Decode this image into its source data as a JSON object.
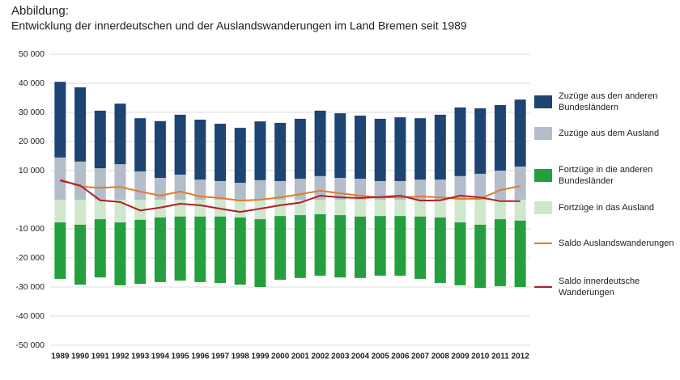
{
  "chart_data": {
    "type": "bar",
    "title": "Abbildung:",
    "subtitle": "Entwicklung der innerdeutschen und der Auslandswanderungen im Land Bremen seit 1989",
    "categories": [
      "1989",
      "1990",
      "1991",
      "1992",
      "1993",
      "1994",
      "1995",
      "1996",
      "1997",
      "1998",
      "1999",
      "2000",
      "2001",
      "2002",
      "2003",
      "2004",
      "2005",
      "2006",
      "2007",
      "2008",
      "2009",
      "2010",
      "2011",
      "2012"
    ],
    "ylim": [
      -50000,
      50000
    ],
    "yticks": [
      {
        "value": 50000,
        "label": "50 000"
      },
      {
        "value": 40000,
        "label": "40 000"
      },
      {
        "value": 30000,
        "label": "30 000"
      },
      {
        "value": 20000,
        "label": "20 000"
      },
      {
        "value": 10000,
        "label": "10 000"
      },
      {
        "value": -10000,
        "label": "-10 000"
      },
      {
        "value": -20000,
        "label": "-20 000"
      },
      {
        "value": -30000,
        "label": "-30 000"
      },
      {
        "value": -40000,
        "label": "-40 000"
      },
      {
        "value": -50000,
        "label": "-50 000"
      }
    ],
    "grid": true,
    "legend": "right",
    "series": [
      {
        "name": "Zuzüge aus den anderen Bundesländern",
        "type": "bar",
        "color": "#1d4472",
        "values": [
          26000,
          25500,
          19800,
          20800,
          18300,
          19500,
          20600,
          20600,
          19700,
          18900,
          20200,
          20000,
          20600,
          22500,
          22200,
          21700,
          21400,
          21900,
          21100,
          22300,
          23600,
          22500,
          22500,
          23000
        ]
      },
      {
        "name": "Zuzüge aus dem Ausland",
        "type": "bar",
        "color": "#b3bdca",
        "values": [
          14500,
          13100,
          10800,
          12200,
          9700,
          7500,
          8600,
          6900,
          6400,
          5800,
          6700,
          6400,
          7200,
          8100,
          7500,
          7200,
          6400,
          6400,
          6900,
          6900,
          8100,
          8900,
          10000,
          11400
        ]
      },
      {
        "name": "Fortzüge in die anderen Bundesländer",
        "type": "bar",
        "color": "#23a03d",
        "values": [
          -19400,
          -20600,
          -20000,
          -21600,
          -22000,
          -22200,
          -22000,
          -22500,
          -22800,
          -23100,
          -23300,
          -21900,
          -21600,
          -21100,
          -21400,
          -21100,
          -20500,
          -20500,
          -21400,
          -22500,
          -21600,
          -21700,
          -23000,
          -22800
        ]
      },
      {
        "name": "Fortzüge in das Ausland",
        "type": "bar",
        "color": "#cfe7cd",
        "values": [
          -7800,
          -8600,
          -6700,
          -7800,
          -6900,
          -6100,
          -5800,
          -5800,
          -5800,
          -6100,
          -6700,
          -5600,
          -5300,
          -5000,
          -5300,
          -5800,
          -5600,
          -5600,
          -5800,
          -6100,
          -7800,
          -8600,
          -6700,
          -7200
        ]
      },
      {
        "name": "Saldo Auslandswanderungen",
        "type": "line",
        "color": "#e07a2a",
        "values": [
          7000,
          4500,
          4100,
          4400,
          2800,
          1400,
          2800,
          1100,
          600,
          -300,
          0,
          800,
          1900,
          3100,
          2200,
          1400,
          800,
          800,
          1100,
          800,
          300,
          300,
          3300,
          4700
        ]
      },
      {
        "name": "Saldo innerdeutsche Wanderungen",
        "type": "line",
        "color": "#b01e2a",
        "values": [
          6600,
          4900,
          -200,
          -800,
          -3700,
          -2700,
          -1400,
          -1900,
          -3100,
          -4200,
          -3100,
          -1900,
          -1000,
          1400,
          800,
          600,
          900,
          1400,
          -300,
          -200,
          1400,
          800,
          -500,
          -500
        ]
      }
    ]
  }
}
